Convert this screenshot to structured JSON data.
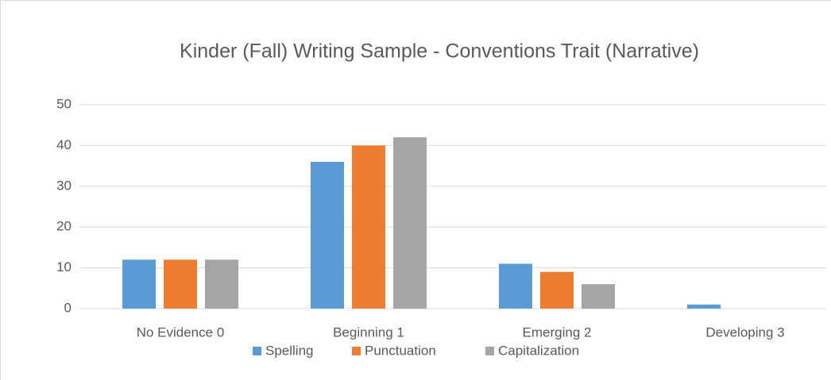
{
  "chart_data": {
    "type": "bar",
    "title": "Kinder (Fall) Writing Sample - Conventions Trait (Narrative)",
    "categories": [
      "No Evidence 0",
      "Beginning 1",
      "Emerging 2",
      "Developing 3"
    ],
    "series": [
      {
        "name": "Spelling",
        "color": "#5b9bd5",
        "values": [
          12,
          36,
          11,
          1
        ]
      },
      {
        "name": "Punctuation",
        "color": "#ed7d31",
        "values": [
          12,
          40,
          9,
          0
        ]
      },
      {
        "name": "Capitalization",
        "color": "#a5a5a5",
        "values": [
          12,
          42,
          6,
          0
        ]
      }
    ],
    "ylim": [
      0,
      50
    ],
    "yticks": [
      0,
      10,
      20,
      30,
      40,
      50
    ],
    "grid": true,
    "legend": "bottom"
  }
}
